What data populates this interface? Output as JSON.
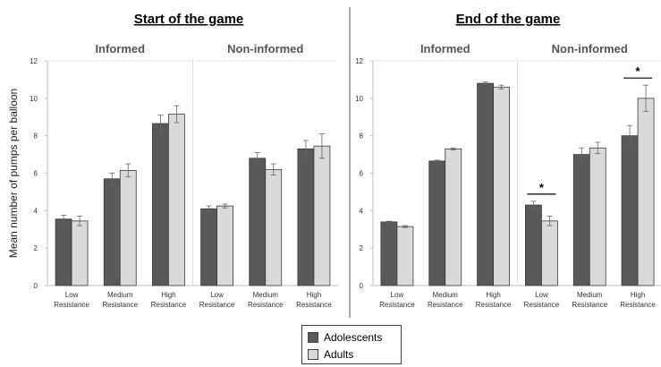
{
  "colors": {
    "adolescents": "#595959",
    "adults": "#d9d9d9",
    "edge": "#3a3a3a"
  },
  "legend": {
    "items": [
      {
        "label": "Adolescents",
        "color": "#595959"
      },
      {
        "label": "Adults",
        "color": "#d9d9d9"
      }
    ]
  },
  "chart_data": [
    {
      "type": "bar",
      "title": "Start of the game",
      "ylabel": "Mean number of pumps per balloon",
      "ylim": [
        0,
        12
      ],
      "yticks": [
        0,
        2,
        4,
        6,
        8,
        10,
        12
      ],
      "categories": [
        "Low Resistance",
        "Medium Resistance",
        "High Resistance"
      ],
      "category_lines": [
        [
          "Low",
          "Resistance"
        ],
        [
          "Medium",
          "Resistance"
        ],
        [
          "High",
          "Resistance"
        ]
      ],
      "panels": [
        {
          "name": "Informed",
          "series": [
            {
              "name": "Adolescents",
              "values": [
                3.55,
                5.7,
                8.65
              ],
              "errors": [
                0.2,
                0.3,
                0.45
              ]
            },
            {
              "name": "Adults",
              "values": [
                3.45,
                6.15,
                9.15
              ],
              "errors": [
                0.25,
                0.35,
                0.45
              ]
            }
          ],
          "significance": []
        },
        {
          "name": "Non-informed",
          "series": [
            {
              "name": "Adolescents",
              "values": [
                4.1,
                6.8,
                7.3
              ],
              "errors": [
                0.15,
                0.3,
                0.45
              ]
            },
            {
              "name": "Adults",
              "values": [
                4.25,
                6.2,
                7.45
              ],
              "errors": [
                0.1,
                0.3,
                0.65
              ]
            }
          ],
          "significance": []
        }
      ]
    },
    {
      "type": "bar",
      "title": "End of the game",
      "ylabel": "",
      "ylim": [
        0,
        12
      ],
      "yticks": [
        0,
        2,
        4,
        6,
        8,
        10,
        12
      ],
      "categories": [
        "Low Resistance",
        "Medium Resistance",
        "High Resistance"
      ],
      "category_lines": [
        [
          "Low",
          "Resistance"
        ],
        [
          "Medium",
          "Resistance"
        ],
        [
          "High",
          "Resistance"
        ]
      ],
      "panels": [
        {
          "name": "Informed",
          "series": [
            {
              "name": "Adolescents",
              "values": [
                3.4,
                6.65,
                10.8
              ],
              "errors": [
                0.03,
                0.05,
                0.07
              ]
            },
            {
              "name": "Adults",
              "values": [
                3.15,
                7.3,
                10.6
              ],
              "errors": [
                0.05,
                0.05,
                0.1
              ]
            }
          ],
          "significance": []
        },
        {
          "name": "Non-informed",
          "series": [
            {
              "name": "Adolescents",
              "values": [
                4.3,
                7.0,
                8.0
              ],
              "errors": [
                0.2,
                0.35,
                0.55
              ]
            },
            {
              "name": "Adults",
              "values": [
                3.45,
                7.35,
                10.0
              ],
              "errors": [
                0.25,
                0.3,
                0.7
              ]
            }
          ],
          "significance": [
            {
              "category": 0,
              "label": "*"
            },
            {
              "category": 2,
              "label": "*"
            }
          ]
        }
      ]
    }
  ]
}
